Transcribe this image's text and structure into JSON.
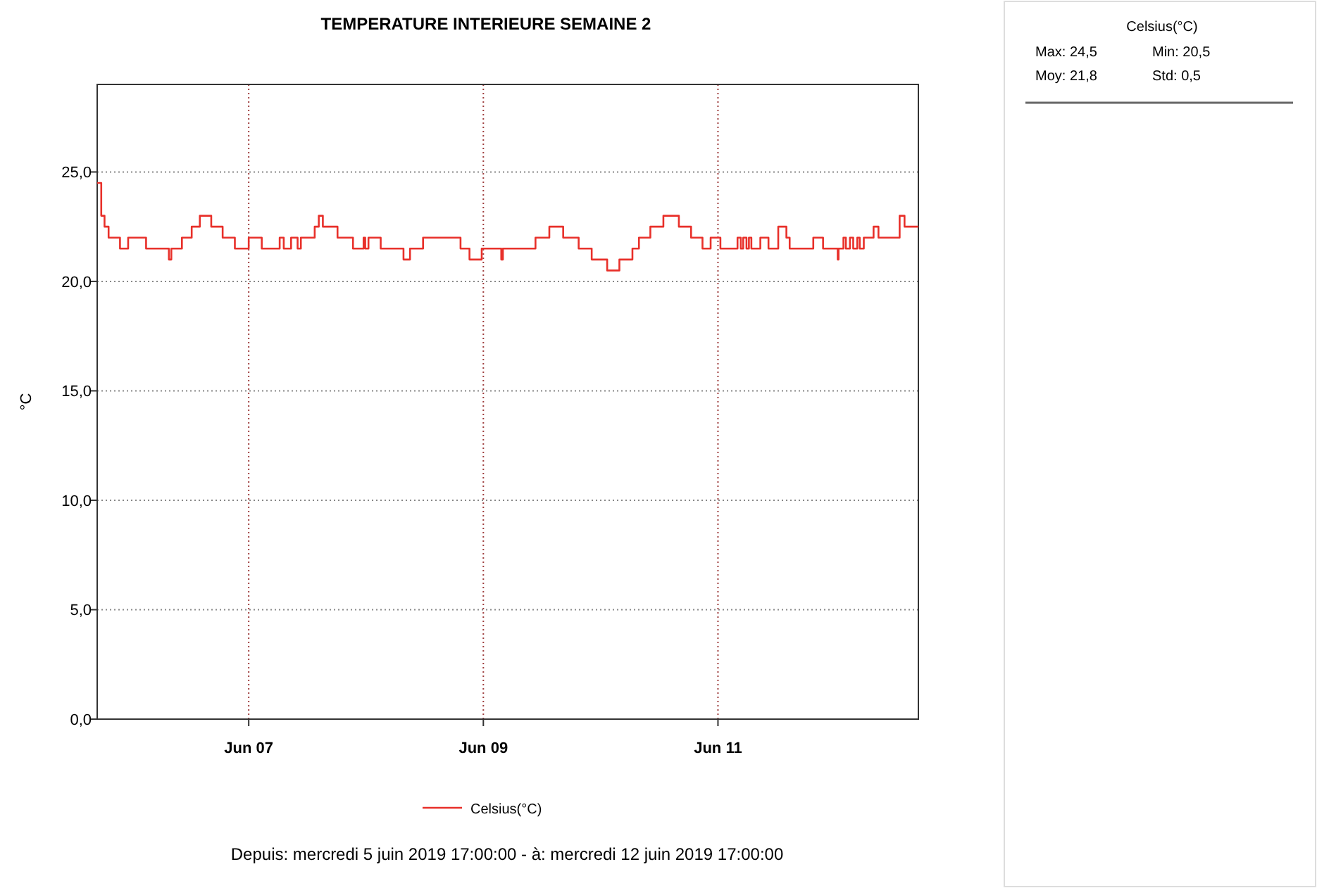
{
  "chart_data": {
    "type": "step",
    "title": "TEMPERATURE INTERIEURE SEMAINE 2",
    "ylabel": "°C",
    "xlim": [
      "2019-06-05T17:00",
      "2019-06-12T17:00"
    ],
    "xticks": [
      {
        "value": "2019-06-07",
        "label": "Jun 07"
      },
      {
        "value": "2019-06-09",
        "label": "Jun 09"
      },
      {
        "value": "2019-06-11",
        "label": "Jun 11"
      }
    ],
    "ylim": [
      0,
      29
    ],
    "yticks": [
      {
        "value": 0,
        "label": "0,0"
      },
      {
        "value": 5,
        "label": "5,0"
      },
      {
        "value": 10,
        "label": "10,0"
      },
      {
        "value": 15,
        "label": "15,0"
      },
      {
        "value": 20,
        "label": "20,0"
      },
      {
        "value": 25,
        "label": "25,0"
      }
    ],
    "grid": true,
    "legend": "bottom",
    "annotations": [
      "Celsius(°C)",
      "Max: 24,5",
      "Min: 20,5",
      "Moy: 21,8",
      "Std: 0,5",
      "Depuis: mercredi 5 juin 2019 17:00:00  -  à: mercredi 12 juin 2019 17:00:00"
    ],
    "x": [
      "2019-06-05T17:00",
      "2019-06-05T17:50",
      "2019-06-05T18:30",
      "2019-06-05T19:20",
      "2019-06-05T21:40",
      "2019-06-05T23:20",
      "2019-06-06T03:00",
      "2019-06-06T07:40",
      "2019-06-06T08:10",
      "2019-06-06T10:20",
      "2019-06-06T12:20",
      "2019-06-06T14:00",
      "2019-06-06T16:20",
      "2019-06-06T18:40",
      "2019-06-06T21:10",
      "2019-06-07T00:00",
      "2019-06-07T02:40",
      "2019-06-07T06:20",
      "2019-06-07T07:10",
      "2019-06-07T08:40",
      "2019-06-07T10:00",
      "2019-06-07T10:40",
      "2019-06-07T13:30",
      "2019-06-07T14:20",
      "2019-06-07T15:10",
      "2019-06-07T18:10",
      "2019-06-07T21:20",
      "2019-06-07T23:30",
      "2019-06-07T23:50",
      "2019-06-08T00:30",
      "2019-06-08T03:00",
      "2019-06-08T07:40",
      "2019-06-08T09:00",
      "2019-06-08T11:40",
      "2019-06-08T19:20",
      "2019-06-08T21:10",
      "2019-06-08T23:40",
      "2019-06-09T03:40",
      "2019-06-09T04:00",
      "2019-06-09T10:40",
      "2019-06-09T13:30",
      "2019-06-09T16:20",
      "2019-06-09T19:30",
      "2019-06-09T22:10",
      "2019-06-10T01:20",
      "2019-06-10T03:50",
      "2019-06-10T06:30",
      "2019-06-10T07:50",
      "2019-06-10T10:10",
      "2019-06-10T12:50",
      "2019-06-10T16:00",
      "2019-06-10T18:30",
      "2019-06-10T20:50",
      "2019-06-10T22:30",
      "2019-06-11T00:30",
      "2019-06-11T04:00",
      "2019-06-11T04:40",
      "2019-06-11T05:10",
      "2019-06-11T05:50",
      "2019-06-11T06:20",
      "2019-06-11T06:50",
      "2019-06-11T08:40",
      "2019-06-11T10:20",
      "2019-06-11T12:20",
      "2019-06-11T14:00",
      "2019-06-11T14:40",
      "2019-06-11T19:30",
      "2019-06-11T21:30",
      "2019-06-12T00:30",
      "2019-06-12T00:40",
      "2019-06-12T01:40",
      "2019-06-12T02:10",
      "2019-06-12T03:00",
      "2019-06-12T03:40",
      "2019-06-12T04:30",
      "2019-06-12T05:00",
      "2019-06-12T05:50",
      "2019-06-12T07:50",
      "2019-06-12T08:50",
      "2019-06-12T13:10",
      "2019-06-12T14:10",
      "2019-06-12T17:00"
    ],
    "series": [
      {
        "name": "Celsius(°C)",
        "color": "#e8302a",
        "values": [
          24.5,
          23,
          22.5,
          22,
          21.5,
          22,
          21.5,
          21,
          21.5,
          22,
          22.5,
          23,
          22.5,
          22,
          21.5,
          22,
          21.5,
          22,
          21.5,
          22,
          21.5,
          22,
          22.5,
          23,
          22.5,
          22,
          21.5,
          22,
          21.5,
          22,
          21.5,
          21,
          21.5,
          22,
          21.5,
          21,
          21.5,
          21,
          21.5,
          22,
          22.5,
          22,
          21.5,
          21,
          20.5,
          21,
          21.5,
          22,
          22.5,
          23,
          22.5,
          22,
          21.5,
          22,
          21.5,
          22,
          21.5,
          22,
          21.5,
          22,
          21.5,
          22,
          21.5,
          22.5,
          22,
          21.5,
          22,
          21.5,
          21,
          21.5,
          22,
          21.5,
          22,
          21.5,
          22,
          21.5,
          22,
          22.5,
          22,
          23,
          22.5,
          22.5
        ]
      }
    ]
  }
}
